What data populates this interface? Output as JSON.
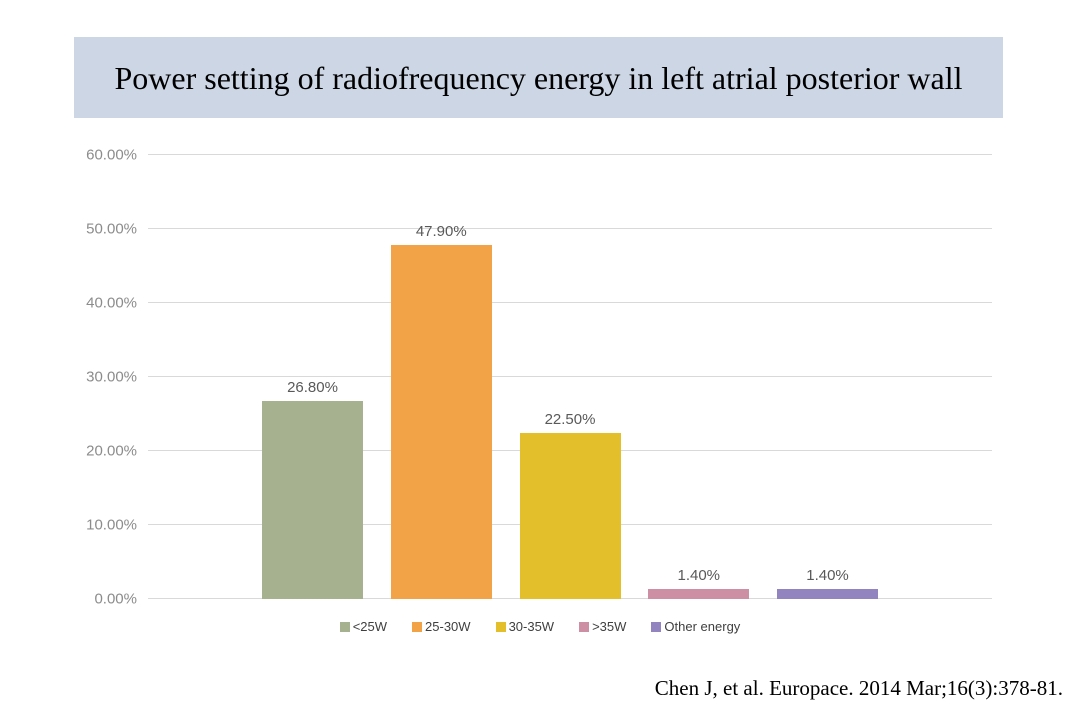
{
  "title": "Power setting of radiofrequency energy in left atrial posterior wall",
  "citation": "Chen J, et al. Europace. 2014 Mar;16(3):378-81.",
  "colors": {
    "title_bg": "#CCD6E4",
    "grid": "#D9D9D9",
    "axis_text": "#8C8C8C",
    "data_label_text": "#595959",
    "legend_text": "#3F3F3F"
  },
  "chart_data": {
    "type": "bar",
    "title": "Power setting of radiofrequency energy in left atrial posterior wall",
    "categories": [
      "<25W",
      "25-30W",
      "30-35W",
      ">35W",
      "Other energy"
    ],
    "values": [
      26.8,
      47.9,
      22.5,
      1.4,
      1.4
    ],
    "value_labels": [
      "26.80%",
      "47.90%",
      "22.50%",
      "1.40%",
      "1.40%"
    ],
    "bar_colors": [
      "#A6B28F",
      "#F2A247",
      "#E3BF2B",
      "#CC8FA3",
      "#9184BF"
    ],
    "xlabel": "",
    "ylabel": "",
    "ylim": [
      0,
      60
    ],
    "ytick_step": 10,
    "ytick_labels": [
      "0.00%",
      "10.00%",
      "20.00%",
      "30.00%",
      "40.00%",
      "50.00%",
      "60.00%"
    ],
    "grid": true,
    "legend_position": "bottom"
  }
}
